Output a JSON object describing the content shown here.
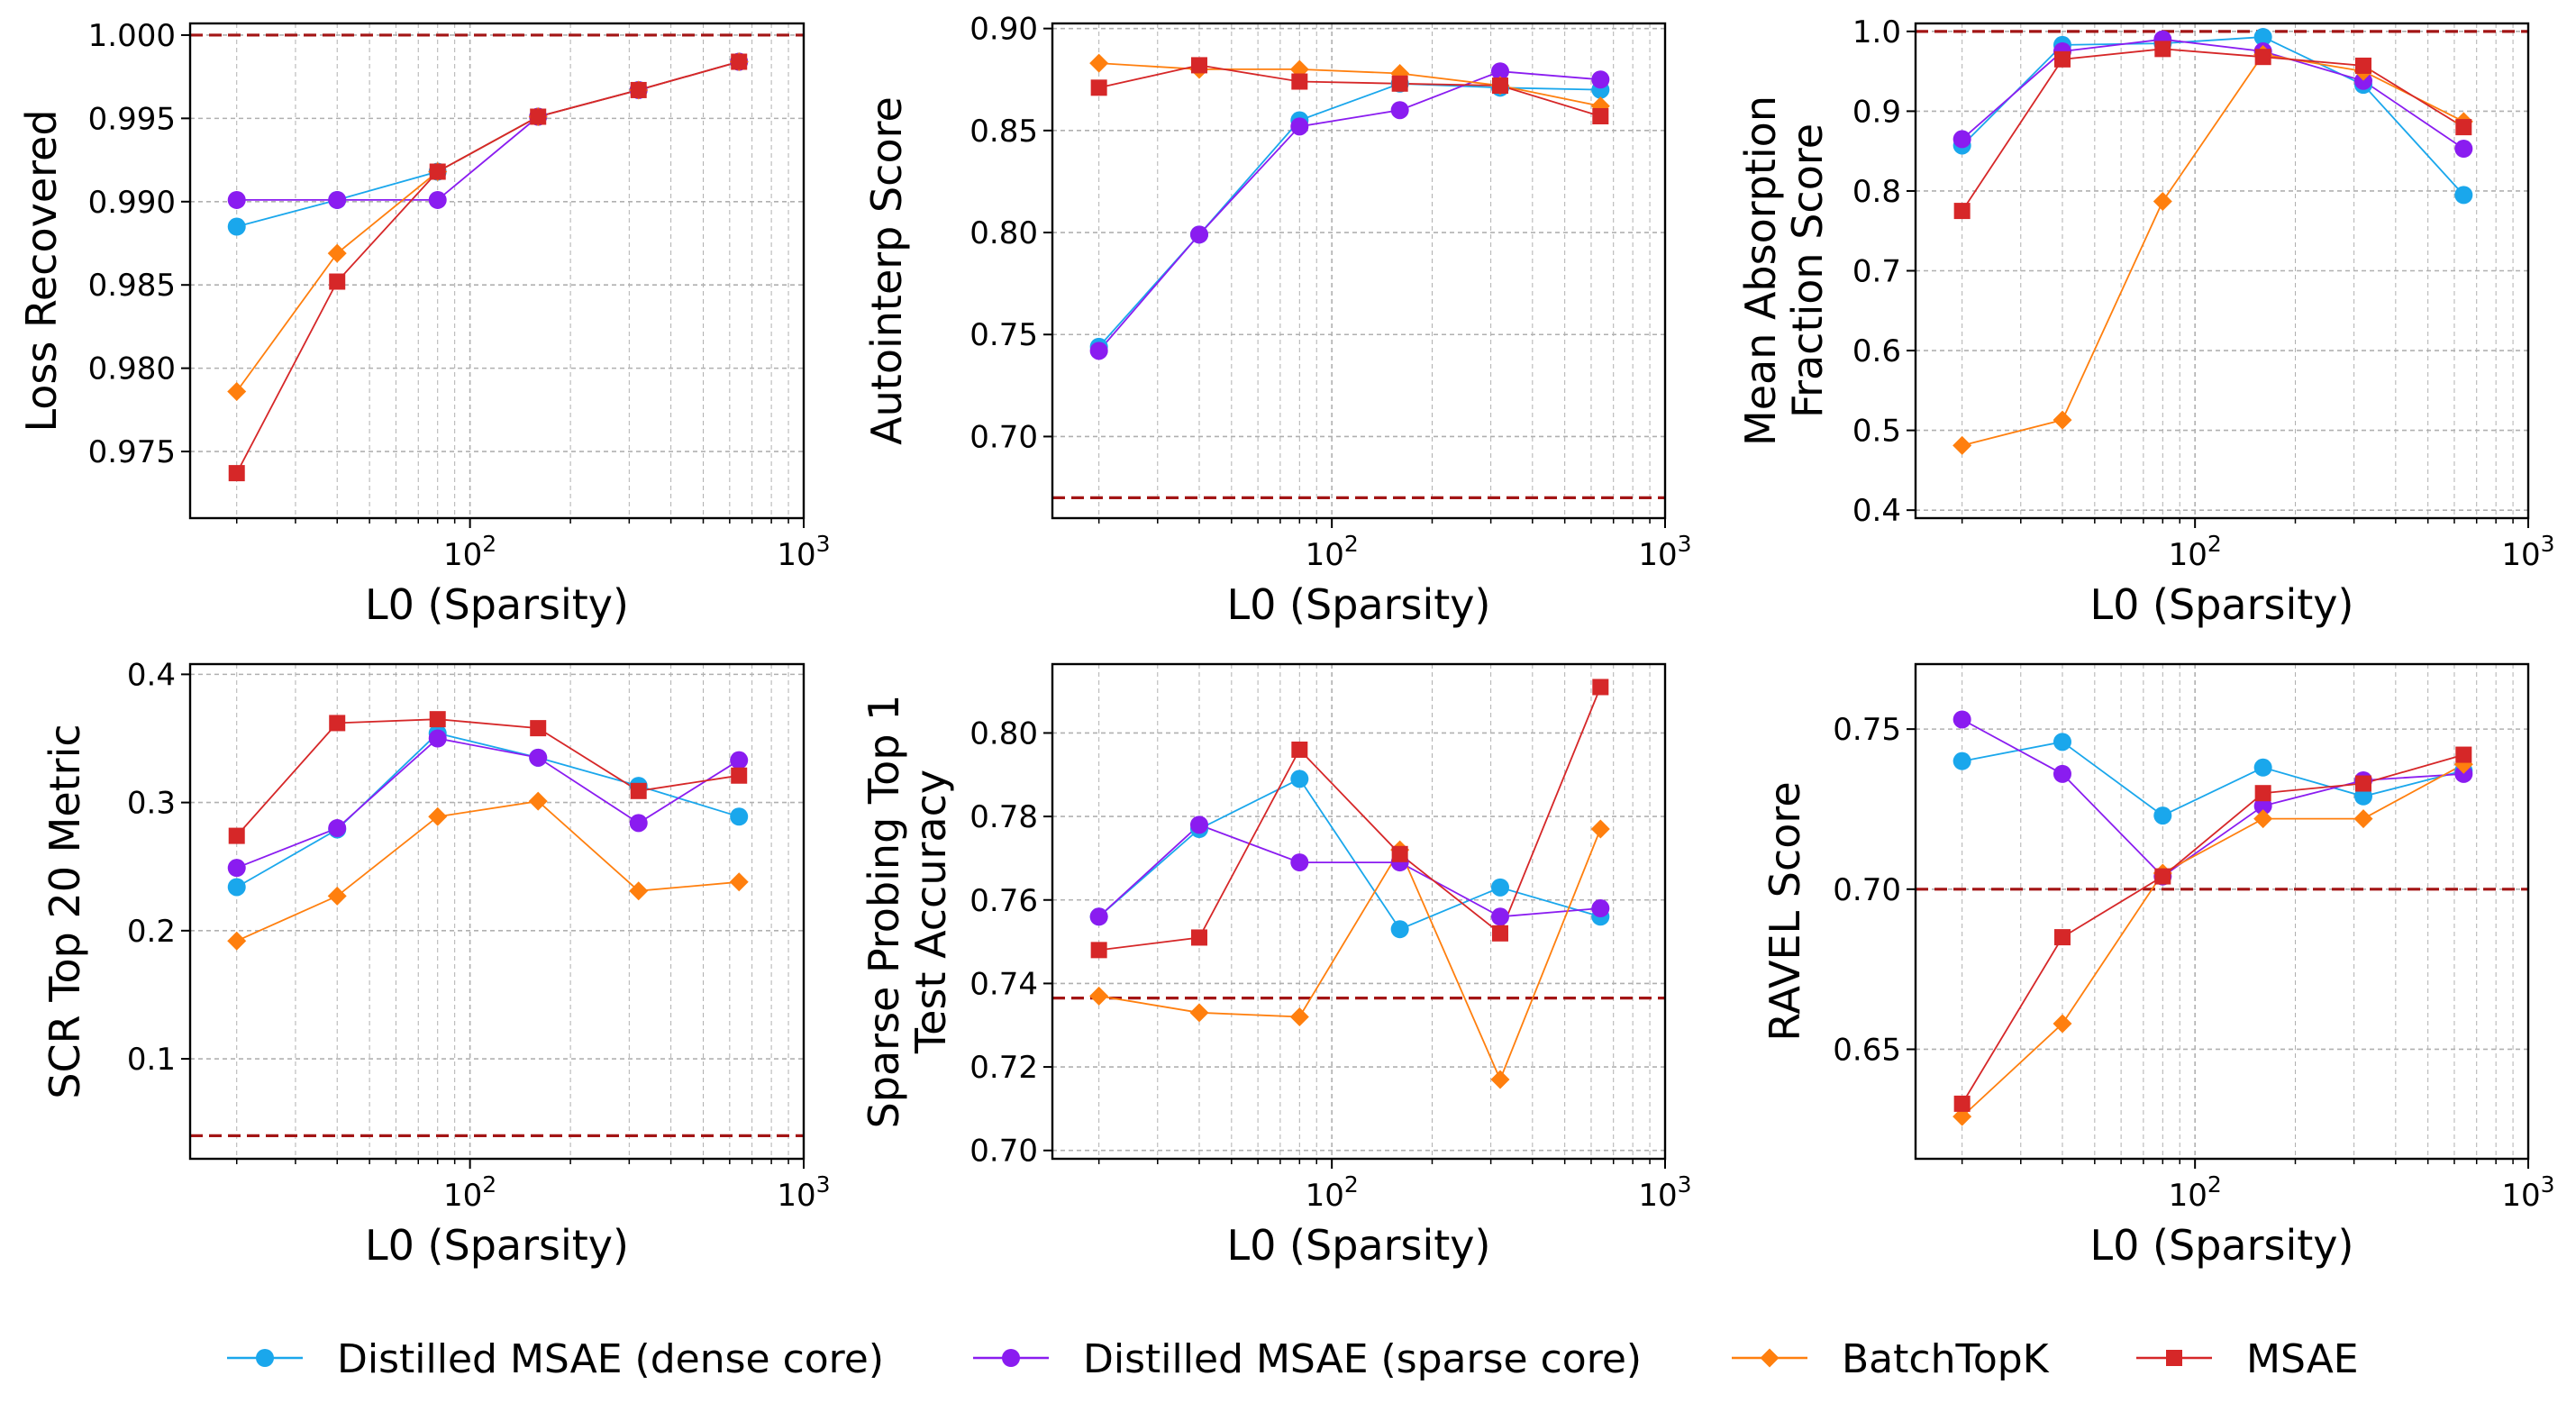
{
  "legend": [
    {
      "name": "Distilled MSAE (dense core)",
      "color": "#1aa7ec",
      "marker": "circle"
    },
    {
      "name": "Distilled MSAE (sparse core)",
      "color": "#8a1cf0",
      "marker": "circle"
    },
    {
      "name": "BatchTopK",
      "color": "#ff7f0e",
      "marker": "diamond"
    },
    {
      "name": "MSAE",
      "color": "#d62728",
      "marker": "square"
    }
  ],
  "baseline_color": "#a31515",
  "chart_data": [
    {
      "type": "line",
      "title": "",
      "xlabel": "L0 (Sparsity)",
      "ylabel": [
        "Loss Recovered"
      ],
      "xscale": "log",
      "xlim": [
        14.5,
        1000
      ],
      "ylim": [
        0.971,
        1.0007
      ],
      "yticks": [
        0.975,
        0.98,
        0.985,
        0.99,
        0.995,
        1.0
      ],
      "ytick_labels": [
        "0.975",
        "0.980",
        "0.985",
        "0.990",
        "0.995",
        "1.000"
      ],
      "xtick_labels": [
        {
          "base": "10",
          "exp": "2"
        },
        {
          "base": "10",
          "exp": "3"
        }
      ],
      "baseline": 1.0,
      "x": [
        20,
        40,
        80,
        160,
        320,
        640
      ],
      "series": [
        {
          "name": "Distilled MSAE (dense core)",
          "values": [
            0.9885,
            0.9901,
            0.9918,
            0.9951,
            0.9967,
            0.9984
          ]
        },
        {
          "name": "Distilled MSAE (sparse core)",
          "values": [
            0.9901,
            0.9901,
            0.9901,
            0.9951,
            0.9967,
            0.9984
          ]
        },
        {
          "name": "BatchTopK",
          "values": [
            0.9786,
            0.9869,
            0.9918,
            0.9951,
            0.9967,
            0.9984
          ]
        },
        {
          "name": "MSAE",
          "values": [
            0.9737,
            0.9852,
            0.9918,
            0.9951,
            0.9967,
            0.9984
          ]
        }
      ]
    },
    {
      "type": "line",
      "title": "",
      "xlabel": "L0 (Sparsity)",
      "ylabel": [
        "Autointerp Score"
      ],
      "xscale": "log",
      "xlim": [
        14.5,
        1000
      ],
      "ylim": [
        0.66,
        0.9025
      ],
      "yticks": [
        0.7,
        0.75,
        0.8,
        0.85,
        0.9
      ],
      "ytick_labels": [
        "0.70",
        "0.75",
        "0.80",
        "0.85",
        "0.90"
      ],
      "xtick_labels": [
        {
          "base": "10",
          "exp": "2"
        },
        {
          "base": "10",
          "exp": "3"
        }
      ],
      "baseline": 0.67,
      "x": [
        20,
        40,
        80,
        160,
        320,
        640
      ],
      "series": [
        {
          "name": "Distilled MSAE (dense core)",
          "values": [
            0.744,
            0.799,
            0.855,
            0.873,
            0.871,
            0.87
          ]
        },
        {
          "name": "Distilled MSAE (sparse core)",
          "values": [
            0.742,
            0.799,
            0.852,
            0.86,
            0.879,
            0.875
          ]
        },
        {
          "name": "BatchTopK",
          "values": [
            0.883,
            0.88,
            0.88,
            0.878,
            0.872,
            0.862
          ]
        },
        {
          "name": "MSAE",
          "values": [
            0.871,
            0.882,
            0.874,
            0.873,
            0.872,
            0.857
          ]
        }
      ]
    },
    {
      "type": "line",
      "title": "",
      "xlabel": "L0 (Sparsity)",
      "ylabel": [
        "Mean Absorption",
        "Fraction Score"
      ],
      "xscale": "log",
      "xlim": [
        14.5,
        1000
      ],
      "ylim": [
        0.39,
        1.01
      ],
      "yticks": [
        0.4,
        0.5,
        0.6,
        0.7,
        0.8,
        0.9,
        1.0
      ],
      "ytick_labels": [
        "0.4",
        "0.5",
        "0.6",
        "0.7",
        "0.8",
        "0.9",
        "1.0"
      ],
      "xtick_labels": [
        {
          "base": "10",
          "exp": "2"
        },
        {
          "base": "10",
          "exp": "3"
        }
      ],
      "baseline": 1.0,
      "x": [
        20,
        40,
        80,
        160,
        320,
        640
      ],
      "series": [
        {
          "name": "Distilled MSAE (dense core)",
          "values": [
            0.857,
            0.983,
            0.985,
            0.993,
            0.933,
            0.795
          ]
        },
        {
          "name": "Distilled MSAE (sparse core)",
          "values": [
            0.865,
            0.975,
            0.99,
            0.975,
            0.938,
            0.853
          ]
        },
        {
          "name": "BatchTopK",
          "values": [
            0.481,
            0.513,
            0.787,
            0.971,
            0.95,
            0.887
          ]
        },
        {
          "name": "MSAE",
          "values": [
            0.775,
            0.965,
            0.978,
            0.968,
            0.957,
            0.88
          ]
        }
      ]
    },
    {
      "type": "line",
      "title": "",
      "xlabel": "L0 (Sparsity)",
      "ylabel": [
        "SCR Top 20 Metric"
      ],
      "xscale": "log",
      "xlim": [
        14.5,
        1000
      ],
      "ylim": [
        0.022,
        0.408
      ],
      "yticks": [
        0.1,
        0.2,
        0.3,
        0.4
      ],
      "ytick_labels": [
        "0.1",
        "0.2",
        "0.3",
        "0.4"
      ],
      "xtick_labels": [
        {
          "base": "10",
          "exp": "2"
        },
        {
          "base": "10",
          "exp": "3"
        }
      ],
      "baseline": 0.04,
      "x": [
        20,
        40,
        80,
        160,
        320,
        640
      ],
      "series": [
        {
          "name": "Distilled MSAE (dense core)",
          "values": [
            0.234,
            0.279,
            0.354,
            0.335,
            0.313,
            0.289
          ]
        },
        {
          "name": "Distilled MSAE (sparse core)",
          "values": [
            0.249,
            0.28,
            0.35,
            0.335,
            0.284,
            0.333
          ]
        },
        {
          "name": "BatchTopK",
          "values": [
            0.192,
            0.227,
            0.289,
            0.301,
            0.231,
            0.238
          ]
        },
        {
          "name": "MSAE",
          "values": [
            0.274,
            0.362,
            0.365,
            0.358,
            0.309,
            0.321
          ]
        }
      ]
    },
    {
      "type": "line",
      "title": "",
      "xlabel": "L0 (Sparsity)",
      "ylabel": [
        "Sparse Probing Top 1",
        "Test Accuracy"
      ],
      "xscale": "log",
      "xlim": [
        14.5,
        1000
      ],
      "ylim": [
        0.698,
        0.8165
      ],
      "yticks": [
        0.7,
        0.72,
        0.74,
        0.76,
        0.78,
        0.8
      ],
      "ytick_labels": [
        "0.70",
        "0.72",
        "0.74",
        "0.76",
        "0.78",
        "0.80"
      ],
      "xtick_labels": [
        {
          "base": "10",
          "exp": "2"
        },
        {
          "base": "10",
          "exp": "3"
        }
      ],
      "baseline": 0.7365,
      "x": [
        20,
        40,
        80,
        160,
        320,
        640
      ],
      "series": [
        {
          "name": "Distilled MSAE (dense core)",
          "values": [
            0.756,
            0.777,
            0.789,
            0.753,
            0.763,
            0.756
          ]
        },
        {
          "name": "Distilled MSAE (sparse core)",
          "values": [
            0.756,
            0.778,
            0.769,
            0.769,
            0.756,
            0.758
          ]
        },
        {
          "name": "BatchTopK",
          "values": [
            0.737,
            0.733,
            0.732,
            0.772,
            0.717,
            0.777
          ]
        },
        {
          "name": "MSAE",
          "values": [
            0.748,
            0.751,
            0.796,
            0.771,
            0.752,
            0.811
          ]
        }
      ]
    },
    {
      "type": "line",
      "title": "",
      "xlabel": "L0 (Sparsity)",
      "ylabel": [
        "RAVEL Score"
      ],
      "xscale": "log",
      "xlim": [
        14.5,
        1000
      ],
      "ylim": [
        0.6158,
        0.7703
      ],
      "yticks": [
        0.65,
        0.7,
        0.75
      ],
      "ytick_labels": [
        "0.65",
        "0.70",
        "0.75"
      ],
      "xtick_labels": [
        {
          "base": "10",
          "exp": "2"
        },
        {
          "base": "10",
          "exp": "3"
        }
      ],
      "baseline": 0.7,
      "x": [
        20,
        40,
        80,
        160,
        320,
        640
      ],
      "series": [
        {
          "name": "Distilled MSAE (dense core)",
          "values": [
            0.74,
            0.746,
            0.723,
            0.738,
            0.729,
            0.737
          ]
        },
        {
          "name": "Distilled MSAE (sparse core)",
          "values": [
            0.753,
            0.736,
            0.704,
            0.726,
            0.734,
            0.736
          ]
        },
        {
          "name": "BatchTopK",
          "values": [
            0.629,
            0.658,
            0.705,
            0.722,
            0.722,
            0.739
          ]
        },
        {
          "name": "MSAE",
          "values": [
            0.633,
            0.685,
            0.704,
            0.73,
            0.733,
            0.742
          ]
        }
      ]
    }
  ]
}
